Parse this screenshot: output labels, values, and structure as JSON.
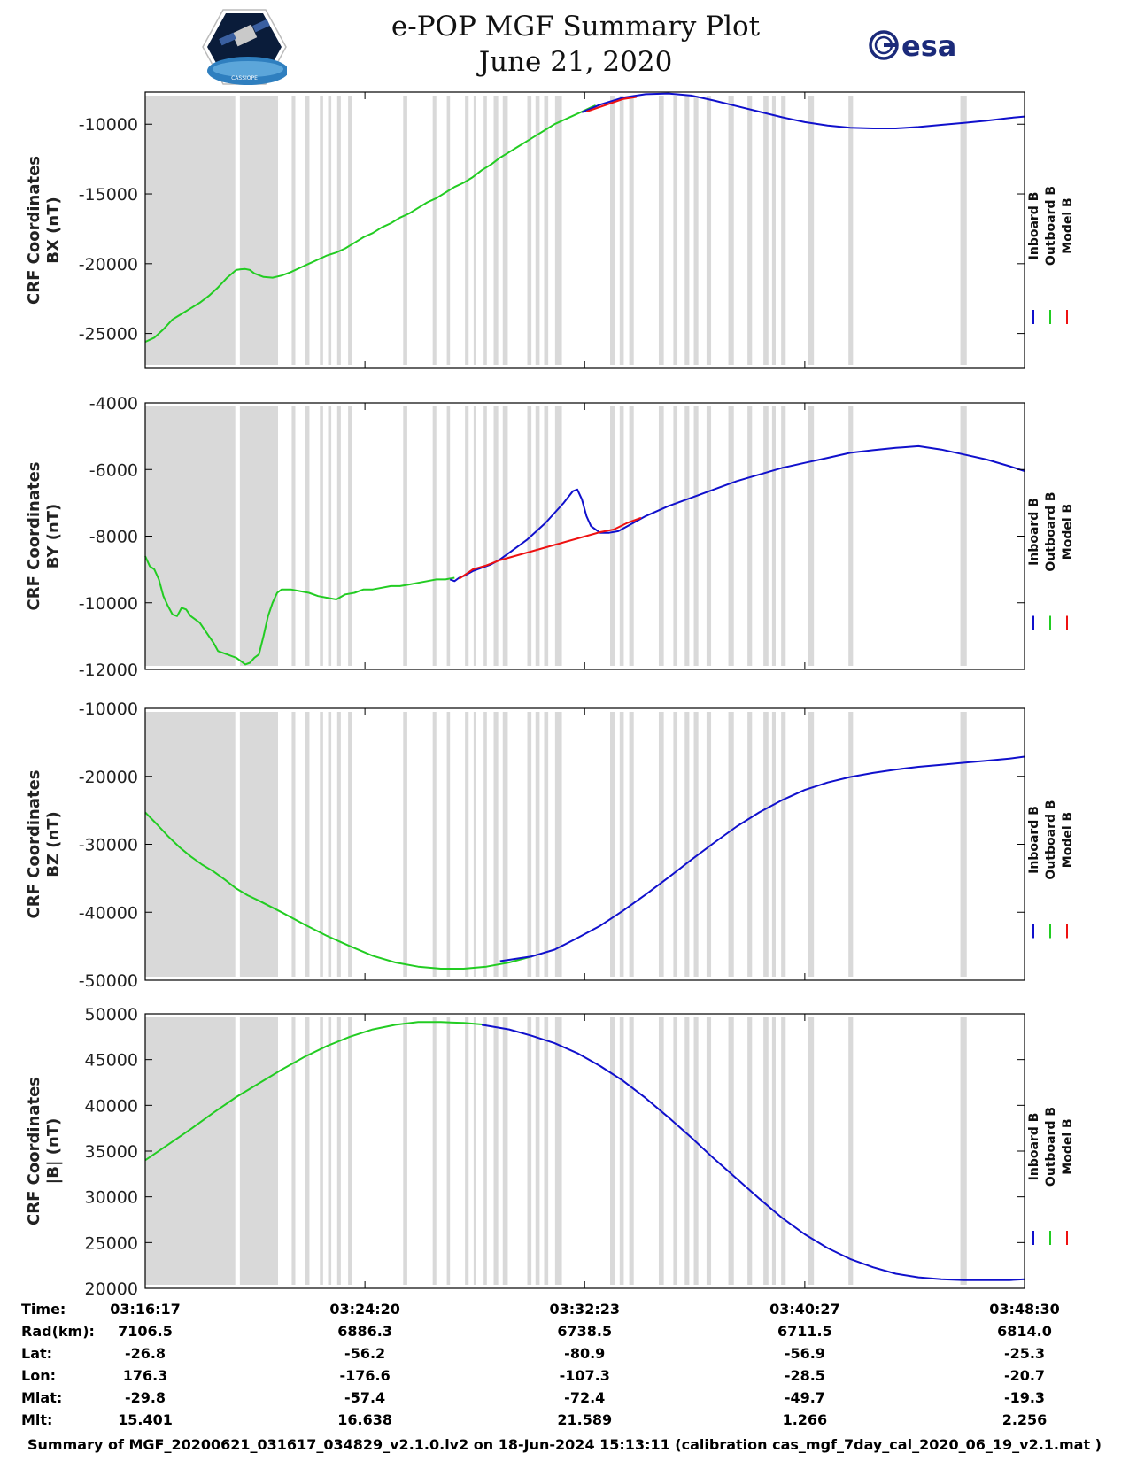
{
  "header": {
    "title": "e-POP MGF Summary Plot",
    "date": "June 21, 2020",
    "left_logo": "CASSIOPE",
    "right_logo": "esa"
  },
  "colors": {
    "inboard": "#1010cc",
    "outboard": "#22cc22",
    "model": "#ee1111",
    "gap": "#d9d9d9"
  },
  "chart_data": [
    {
      "type": "line",
      "panel": "bx",
      "ylabel": [
        "CRF Coordinates",
        "BX (nT)"
      ],
      "yticks": [
        -25000,
        -20000,
        -15000,
        -10000
      ],
      "ylim": [
        -27500,
        -7700
      ],
      "xlim": [
        0,
        1933
      ],
      "legend": [
        "Inboard B",
        "Outboard B",
        "Model B"
      ],
      "series": [
        {
          "name": "Outboard B",
          "color": "outboard",
          "x": [
            0,
            20,
            40,
            60,
            80,
            100,
            120,
            140,
            160,
            180,
            200,
            210,
            220,
            230,
            240,
            260,
            280,
            300,
            320,
            340,
            360,
            380,
            400,
            420,
            440,
            460,
            480,
            500,
            520,
            540,
            560,
            580,
            600,
            620,
            640,
            660,
            680,
            700,
            720,
            740,
            760,
            780,
            800,
            820,
            840,
            860,
            880,
            900,
            920,
            940,
            960,
            980,
            990
          ],
          "y": [
            -25600,
            -25300,
            -24700,
            -24000,
            -23600,
            -23200,
            -22800,
            -22300,
            -21700,
            -21000,
            -20450,
            -20400,
            -20380,
            -20450,
            -20700,
            -20950,
            -21000,
            -20850,
            -20600,
            -20300,
            -20000,
            -19700,
            -19400,
            -19200,
            -18900,
            -18500,
            -18100,
            -17800,
            -17400,
            -17100,
            -16700,
            -16400,
            -16000,
            -15600,
            -15300,
            -14900,
            -14500,
            -14200,
            -13800,
            -13300,
            -12900,
            -12400,
            -12000,
            -11600,
            -11200,
            -10800,
            -10400,
            -10000,
            -9700,
            -9400,
            -9100,
            -8800,
            -8650
          ]
        },
        {
          "name": "Inboard B",
          "color": "inboard",
          "x": [
            960,
            1000,
            1050,
            1100,
            1150,
            1200,
            1250,
            1300,
            1350,
            1400,
            1450,
            1500,
            1550,
            1600,
            1650,
            1700,
            1750,
            1800,
            1850,
            1900,
            1933
          ],
          "y": [
            -9150,
            -8600,
            -8100,
            -7850,
            -7800,
            -7950,
            -8300,
            -8700,
            -9100,
            -9500,
            -9850,
            -10100,
            -10250,
            -10300,
            -10300,
            -10200,
            -10050,
            -9900,
            -9750,
            -9550,
            -9450
          ]
        },
        {
          "name": "Model B",
          "color": "model",
          "x": [
            970,
            1010,
            1050,
            1080
          ],
          "y": [
            -9100,
            -8650,
            -8200,
            -8050
          ]
        }
      ]
    },
    {
      "type": "line",
      "panel": "by",
      "ylabel": [
        "CRF Coordinates",
        "BY (nT)"
      ],
      "yticks": [
        -12000,
        -10000,
        -8000,
        -6000,
        -4000
      ],
      "ylim": [
        -12000,
        -4000
      ],
      "xlim": [
        0,
        1933
      ],
      "legend": [
        "Inboard B",
        "Outboard B",
        "Model B"
      ],
      "series": [
        {
          "name": "Outboard B",
          "color": "outboard",
          "x": [
            0,
            10,
            20,
            30,
            40,
            50,
            60,
            70,
            80,
            90,
            100,
            110,
            120,
            130,
            140,
            150,
            160,
            170,
            180,
            190,
            200,
            210,
            220,
            230,
            240,
            250,
            260,
            270,
            280,
            290,
            300,
            320,
            340,
            360,
            380,
            400,
            420,
            440,
            460,
            480,
            500,
            520,
            540,
            560,
            580,
            600,
            620,
            640,
            660,
            680
          ],
          "y": [
            -8600,
            -8900,
            -9000,
            -9300,
            -9800,
            -10100,
            -10350,
            -10400,
            -10150,
            -10200,
            -10400,
            -10500,
            -10600,
            -10800,
            -11000,
            -11200,
            -11450,
            -11500,
            -11550,
            -11600,
            -11650,
            -11750,
            -11850,
            -11800,
            -11650,
            -11550,
            -11000,
            -10400,
            -10000,
            -9700,
            -9600,
            -9600,
            -9650,
            -9700,
            -9800,
            -9850,
            -9900,
            -9750,
            -9700,
            -9600,
            -9600,
            -9550,
            -9500,
            -9500,
            -9450,
            -9400,
            -9350,
            -9300,
            -9300,
            -9250
          ]
        },
        {
          "name": "Inboard B",
          "color": "inboard",
          "x": [
            670,
            680,
            690,
            700,
            720,
            740,
            760,
            780,
            800,
            840,
            880,
            920,
            940,
            950,
            960,
            970,
            980,
            1000,
            1020,
            1040,
            1060,
            1100,
            1150,
            1200,
            1250,
            1300,
            1350,
            1400,
            1450,
            1500,
            1550,
            1600,
            1650,
            1700,
            1750,
            1800,
            1850,
            1900,
            1933
          ],
          "y": [
            -9300,
            -9350,
            -9250,
            -9200,
            -9050,
            -8950,
            -8850,
            -8700,
            -8500,
            -8100,
            -7600,
            -7000,
            -6650,
            -6600,
            -6900,
            -7400,
            -7700,
            -7900,
            -7900,
            -7850,
            -7700,
            -7400,
            -7100,
            -6850,
            -6600,
            -6350,
            -6150,
            -5950,
            -5800,
            -5650,
            -5500,
            -5420,
            -5350,
            -5300,
            -5400,
            -5550,
            -5700,
            -5900,
            -6050
          ]
        },
        {
          "name": "Model B",
          "color": "model",
          "x": [
            690,
            720,
            750,
            780,
            1000,
            1030,
            1060,
            1090
          ],
          "y": [
            -9280,
            -9000,
            -8880,
            -8720,
            -7880,
            -7800,
            -7600,
            -7450
          ]
        }
      ]
    },
    {
      "type": "line",
      "panel": "bz",
      "ylabel": [
        "CRF Coordinates",
        "BZ (nT)"
      ],
      "yticks": [
        -50000,
        -40000,
        -30000,
        -20000,
        -10000
      ],
      "ylim": [
        -50000,
        -10000
      ],
      "xlim": [
        0,
        1933
      ],
      "legend": [
        "Inboard B",
        "Outboard B",
        "Model B"
      ],
      "series": [
        {
          "name": "Outboard B",
          "color": "outboard",
          "x": [
            0,
            25,
            50,
            75,
            100,
            125,
            150,
            175,
            200,
            225,
            250,
            300,
            350,
            400,
            450,
            500,
            550,
            600,
            650,
            700,
            750,
            800,
            850
          ],
          "y": [
            -25300,
            -27000,
            -28800,
            -30400,
            -31800,
            -33000,
            -34000,
            -35200,
            -36500,
            -37500,
            -38300,
            -40000,
            -41800,
            -43500,
            -45000,
            -46400,
            -47400,
            -48000,
            -48300,
            -48300,
            -48000,
            -47400,
            -46500
          ]
        },
        {
          "name": "Inboard B",
          "color": "inboard",
          "x": [
            780,
            850,
            900,
            950,
            1000,
            1050,
            1100,
            1150,
            1200,
            1250,
            1300,
            1350,
            1400,
            1450,
            1500,
            1550,
            1600,
            1650,
            1700,
            1750,
            1800,
            1850,
            1900,
            1933
          ],
          "y": [
            -47200,
            -46500,
            -45500,
            -43800,
            -42000,
            -39800,
            -37400,
            -34900,
            -32300,
            -29800,
            -27400,
            -25300,
            -23500,
            -22000,
            -20900,
            -20100,
            -19500,
            -19000,
            -18600,
            -18300,
            -18000,
            -17700,
            -17400,
            -17100
          ]
        }
      ]
    },
    {
      "type": "line",
      "panel": "bmag",
      "ylabel": [
        "CRF Coordinates",
        "|B| (nT)"
      ],
      "yticks": [
        20000,
        25000,
        30000,
        35000,
        40000,
        45000,
        50000
      ],
      "ylim": [
        20000,
        50000
      ],
      "xlim": [
        0,
        1933
      ],
      "legend": [
        "Inboard B",
        "Outboard B",
        "Model B"
      ],
      "series": [
        {
          "name": "Outboard B",
          "color": "outboard",
          "x": [
            0,
            50,
            100,
            150,
            200,
            250,
            300,
            350,
            400,
            450,
            500,
            550,
            600,
            650,
            700,
            750
          ],
          "y": [
            34000,
            35700,
            37400,
            39200,
            40900,
            42400,
            43900,
            45300,
            46500,
            47500,
            48300,
            48800,
            49100,
            49100,
            49000,
            48800
          ]
        },
        {
          "name": "Inboard B",
          "color": "inboard",
          "x": [
            740,
            800,
            850,
            900,
            950,
            1000,
            1050,
            1100,
            1150,
            1200,
            1250,
            1300,
            1350,
            1400,
            1450,
            1500,
            1550,
            1600,
            1650,
            1700,
            1750,
            1800,
            1850,
            1900,
            1933
          ],
          "y": [
            48800,
            48300,
            47600,
            46800,
            45700,
            44300,
            42700,
            40800,
            38700,
            36500,
            34200,
            32000,
            29800,
            27700,
            25900,
            24400,
            23200,
            22300,
            21600,
            21200,
            21000,
            20900,
            20900,
            20900,
            21000
          ]
        }
      ]
    }
  ],
  "gap_bands": [
    [
      0,
      198
    ],
    [
      208,
      292
    ],
    [
      322,
      330
    ],
    [
      352,
      361
    ],
    [
      384,
      391
    ],
    [
      402,
      409
    ],
    [
      422,
      430
    ],
    [
      446,
      454
    ],
    [
      567,
      576
    ],
    [
      632,
      640
    ],
    [
      663,
      670
    ],
    [
      703,
      711
    ],
    [
      722,
      728
    ],
    [
      744,
      751
    ],
    [
      766,
      776
    ],
    [
      786,
      797
    ],
    [
      840,
      849
    ],
    [
      858,
      867
    ],
    [
      877,
      886
    ],
    [
      901,
      916
    ],
    [
      1022,
      1032
    ],
    [
      1043,
      1052
    ],
    [
      1064,
      1074
    ],
    [
      1129,
      1140
    ],
    [
      1161,
      1170
    ],
    [
      1186,
      1196
    ],
    [
      1206,
      1216
    ],
    [
      1234,
      1244
    ],
    [
      1282,
      1294
    ],
    [
      1324,
      1334
    ],
    [
      1359,
      1370
    ],
    [
      1378,
      1386
    ],
    [
      1398,
      1408
    ],
    [
      1458,
      1470
    ],
    [
      1546,
      1556
    ],
    [
      1792,
      1806
    ]
  ],
  "time_axis": {
    "row_labels": [
      "Time:",
      "Rad(km):",
      "Lat:",
      "Lon:",
      "Mlat:",
      "Mlt:"
    ],
    "columns": [
      {
        "x": 0,
        "values": [
          "03:16:17",
          "7106.5",
          "-26.8",
          "176.3",
          "-29.8",
          "15.401"
        ]
      },
      {
        "x": 483,
        "values": [
          "03:24:20",
          "6886.3",
          "-56.2",
          "-176.6",
          "-57.4",
          "16.638"
        ]
      },
      {
        "x": 966,
        "values": [
          "03:32:23",
          "6738.5",
          "-80.9",
          "-107.3",
          "-72.4",
          "21.589"
        ]
      },
      {
        "x": 1450,
        "values": [
          "03:40:27",
          "6711.5",
          "-56.9",
          "-28.5",
          "-49.7",
          "1.266"
        ]
      },
      {
        "x": 1933,
        "values": [
          "03:48:30",
          "6814.0",
          "-25.3",
          "-20.7",
          "-19.3",
          "2.256"
        ]
      }
    ]
  },
  "footer": "Summary of MGF_20200621_031617_034829_v2.1.0.lv2 on 18-Jun-2024 15:13:11 (calibration cas_mgf_7day_cal_2020_06_19_v2.1.mat )"
}
